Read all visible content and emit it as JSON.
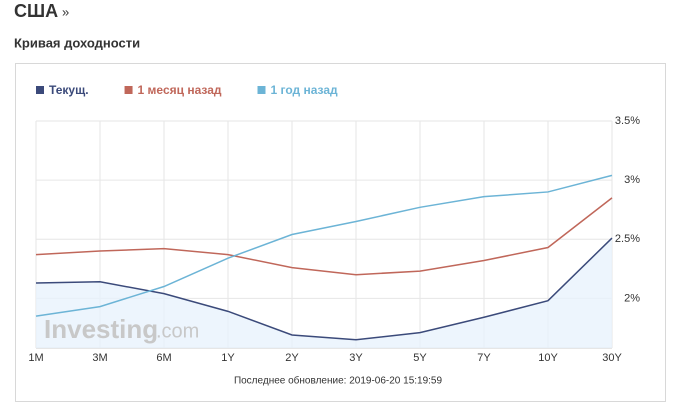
{
  "header": {
    "title": "США",
    "arrow": "»",
    "subtitle": "Кривая доходности"
  },
  "chart_data": {
    "type": "line",
    "categories": [
      "1M",
      "3M",
      "6M",
      "1Y",
      "2Y",
      "3Y",
      "5Y",
      "7Y",
      "10Y",
      "30Y"
    ],
    "series": [
      {
        "name": "Текущ.",
        "color": "#3b4a7a",
        "fill": "#e8f3fc",
        "values": [
          2.13,
          2.14,
          2.04,
          1.89,
          1.69,
          1.65,
          1.71,
          1.84,
          1.98,
          2.51
        ]
      },
      {
        "name": "1 месяц назад",
        "color": "#c0675a",
        "values": [
          2.37,
          2.4,
          2.42,
          2.37,
          2.26,
          2.2,
          2.23,
          2.32,
          2.43,
          2.85
        ]
      },
      {
        "name": "1 год назад",
        "color": "#6cb4d6",
        "values": [
          1.85,
          1.93,
          2.1,
          2.34,
          2.54,
          2.65,
          2.77,
          2.86,
          2.9,
          3.04
        ]
      }
    ],
    "ylim": [
      1.58,
      3.5
    ],
    "yticks": [
      {
        "value": 2,
        "label": "2%"
      },
      {
        "value": 2.5,
        "label": "2.5%"
      },
      {
        "value": 3,
        "label": "3%"
      },
      {
        "value": 3.5,
        "label": "3.5%"
      }
    ],
    "grid": true,
    "watermark": {
      "brand": "Investing",
      "suffix": ".com"
    },
    "note": "Последнее обновление: 2019-06-20 15:19:59"
  }
}
